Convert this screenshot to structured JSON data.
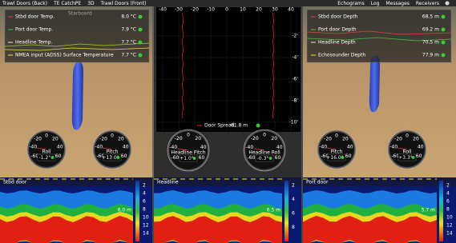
{
  "toolbar": {
    "tabs": [
      "Trawl Doors (Back)",
      "TE CatchPE",
      "3D",
      "Trawl Doors (Front)"
    ],
    "menu": [
      "Echograms",
      "Log",
      "Messages",
      "Receivers"
    ]
  },
  "dial_ticks": [
    "-60",
    "-40",
    "-20",
    "0",
    "20",
    "40",
    "60"
  ],
  "left_panel": {
    "watermark": "Starboard",
    "readings": [
      {
        "label": "Stbd door Temp.",
        "value": "8.0 °C"
      },
      {
        "label": "Port door Temp.",
        "value": "7.9 °C"
      },
      {
        "label": "Headline Temp.",
        "value": "7.7 °C"
      },
      {
        "label": "NMEA input (ADSS) Surface Temperature",
        "value": "7.7 °C"
      }
    ],
    "gauges": [
      {
        "label": "Roll",
        "value": "-1.2°"
      },
      {
        "label": "Pitch",
        "value": "+13.0°"
      }
    ]
  },
  "spread_panel": {
    "x_ticks": [
      "-40",
      "-30",
      "-20",
      "-10",
      "0",
      "10",
      "20",
      "30",
      "40"
    ],
    "depth_ticks": [
      "-2'",
      "-4'",
      "-6'",
      "-8'",
      "-10'"
    ],
    "reading": {
      "label": "Door Spread",
      "value": "61.8 m"
    },
    "gauges": [
      {
        "label": "Headline Pitch",
        "value": "+1.0°"
      },
      {
        "label": "Headline Roll",
        "value": "-0.3°"
      }
    ]
  },
  "right_panel": {
    "readings": [
      {
        "label": "Stbd door Depth",
        "value": "68.5 m"
      },
      {
        "label": "Port door Depth",
        "value": "69.2 m"
      },
      {
        "label": "Headline Depth",
        "value": "70.5 m"
      },
      {
        "label": "Echosounder Depth",
        "value": "77.9 m"
      }
    ],
    "gauges": [
      {
        "label": "Pitch",
        "value": "+16.0°"
      },
      {
        "label": "Roll",
        "value": "+3.3°"
      }
    ]
  },
  "echograms": [
    {
      "title": "Stbd door",
      "depth": "6.0 m",
      "scale": [
        "2",
        "4",
        "6",
        "8",
        "10",
        "12",
        "14"
      ]
    },
    {
      "title": "Headline",
      "depth": "6.5 m",
      "scale": [
        "2",
        "4",
        "6",
        "8"
      ]
    },
    {
      "title": "Port door",
      "depth": "5.7 m",
      "scale": [
        "2",
        "4",
        "6",
        "8",
        "10",
        "12",
        "14"
      ]
    }
  ]
}
